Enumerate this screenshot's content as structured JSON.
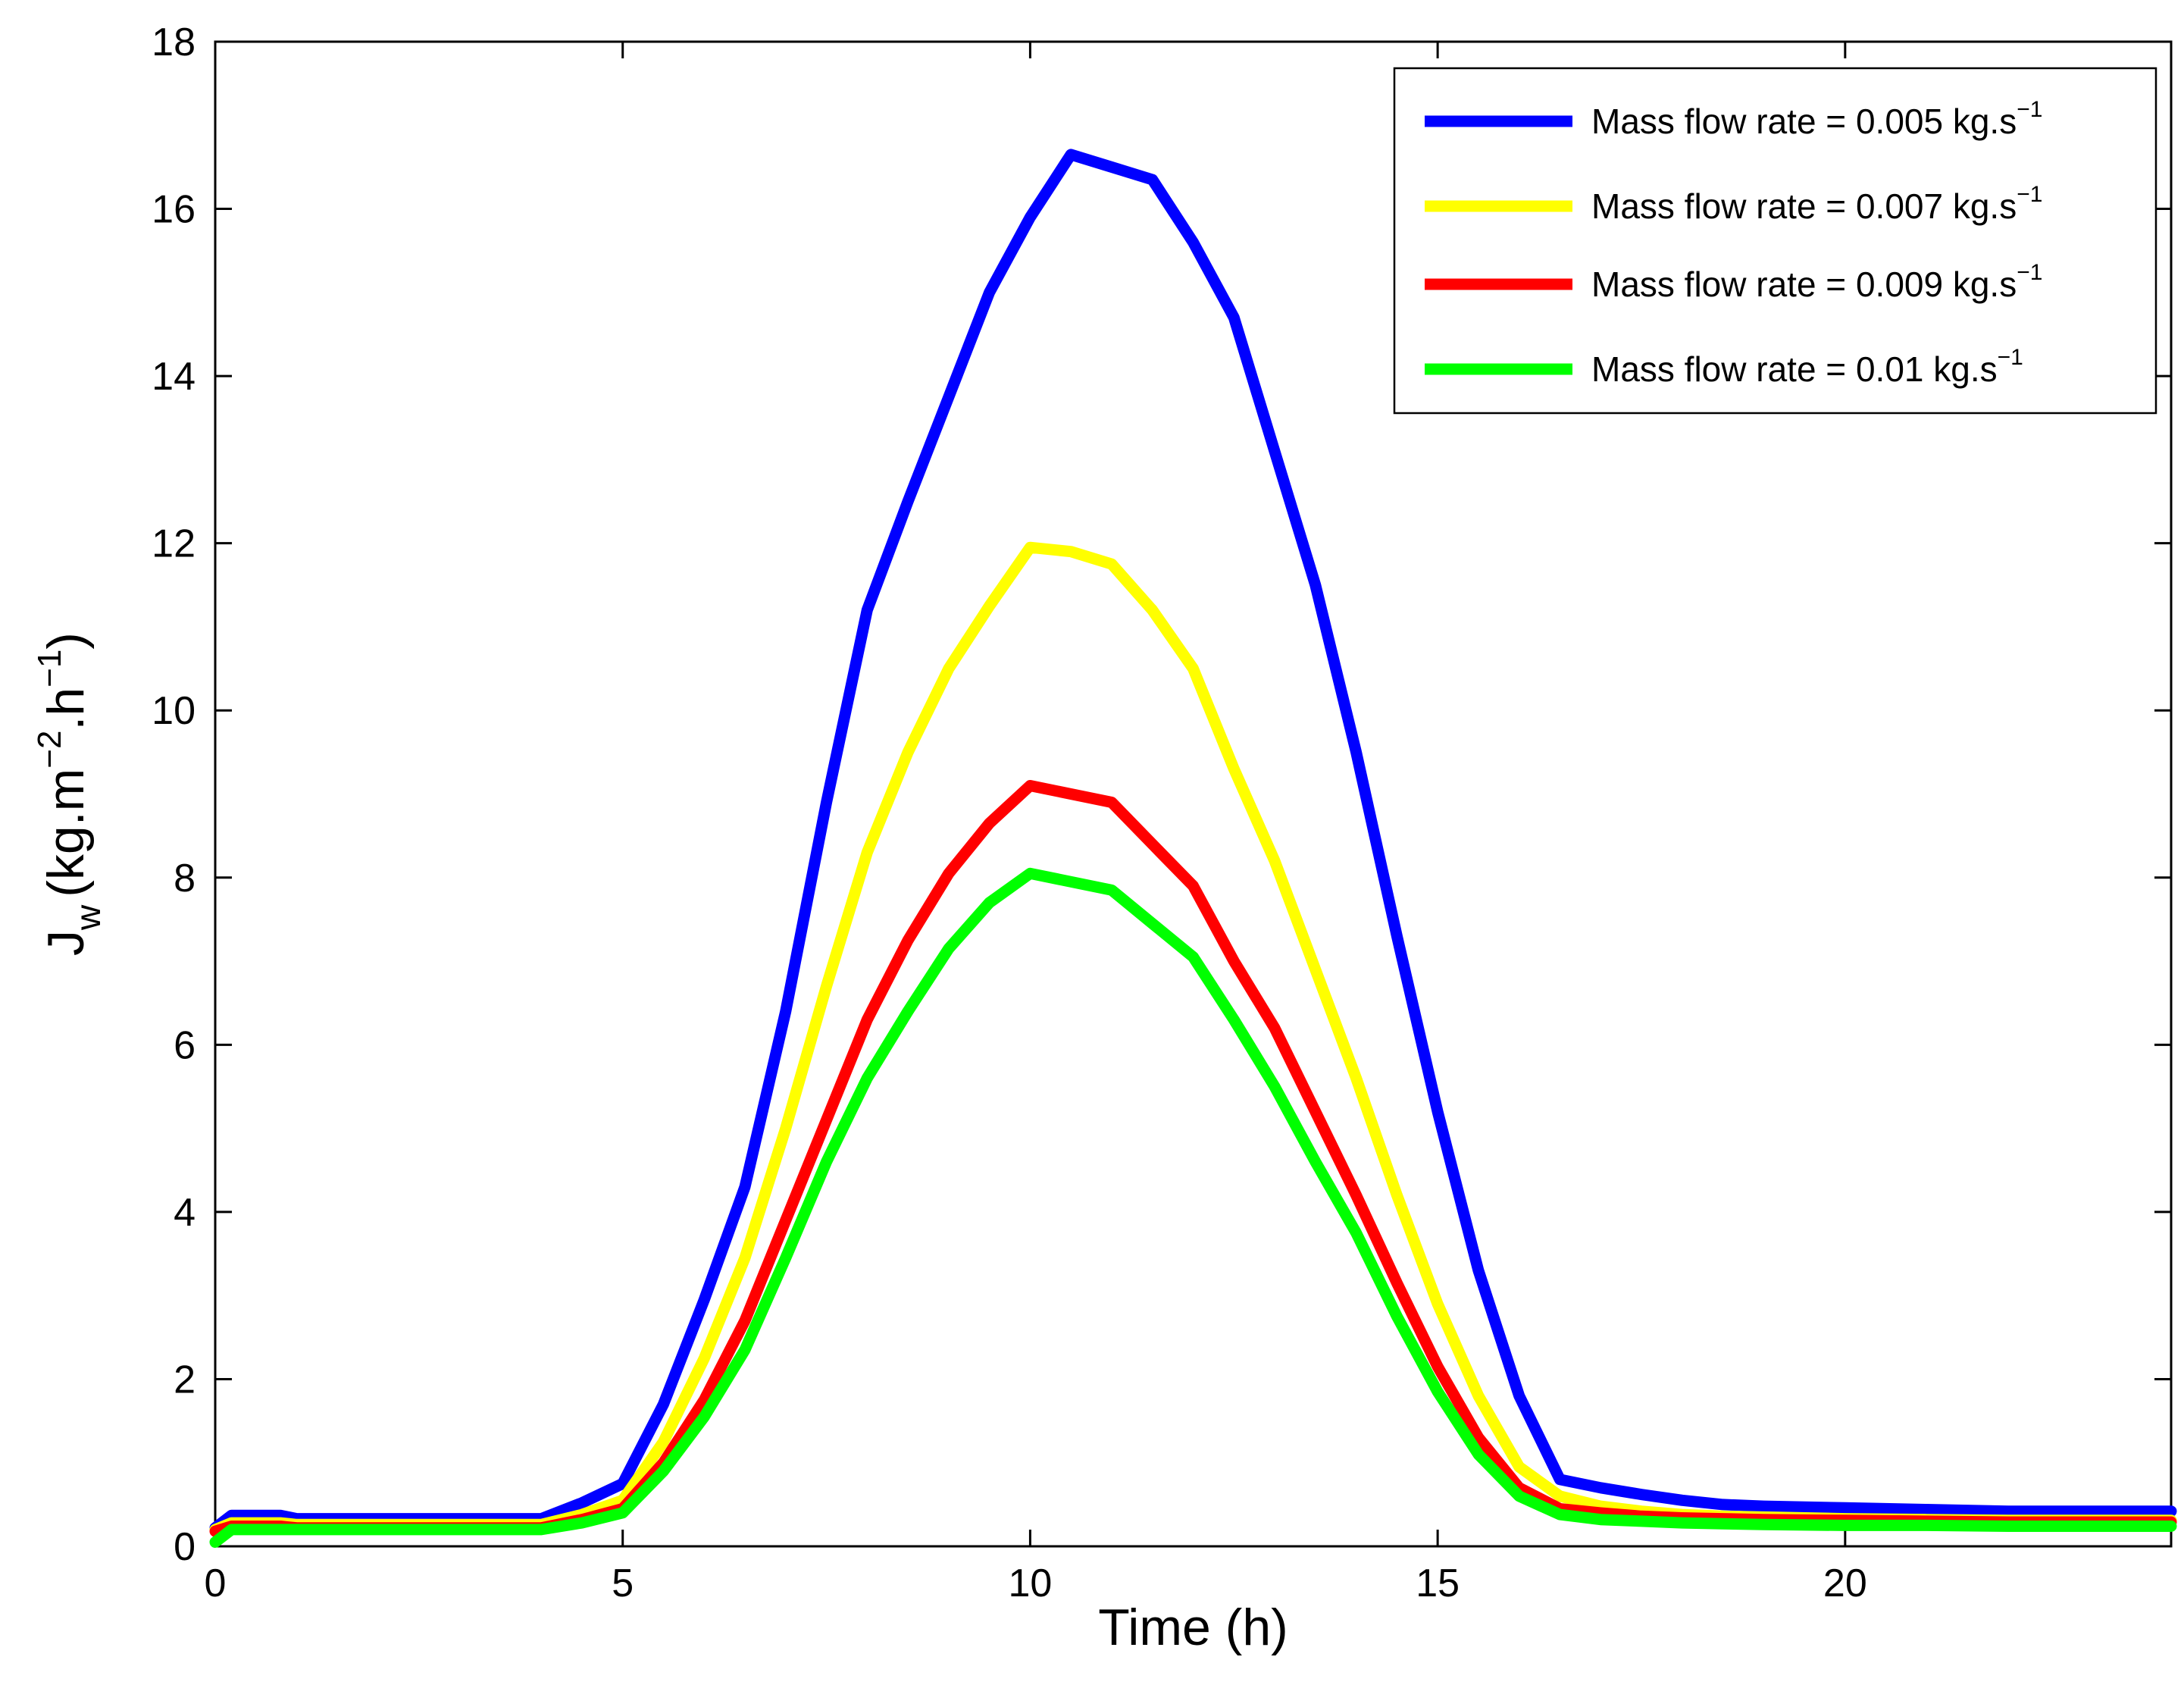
{
  "chart_data": {
    "type": "line",
    "title": "",
    "xlabel": "Time (h)",
    "ylabel": {
      "base": "J",
      "sub": "w",
      "unit_a": "(kg.m",
      "sup_a": "−2",
      "unit_b": ".h",
      "sup_b": "−1",
      "unit_close": ")"
    },
    "xlim": [
      0,
      24
    ],
    "ylim": [
      0,
      18
    ],
    "xticks": [
      0,
      5,
      10,
      15,
      20
    ],
    "yticks": [
      0,
      2,
      4,
      6,
      8,
      10,
      12,
      14,
      16,
      18
    ],
    "grid": false,
    "legend_position": "top-right",
    "x": [
      0,
      0.2,
      0.8,
      1,
      2,
      3,
      4,
      4.5,
      5,
      5.5,
      6,
      6.5,
      7,
      7.5,
      8,
      8.5,
      9,
      9.5,
      10,
      10.5,
      11,
      11.5,
      12,
      12.5,
      13,
      13.5,
      14,
      14.5,
      15,
      15.5,
      16,
      16.5,
      17,
      17.5,
      18,
      18.5,
      19,
      20,
      21,
      22,
      23,
      24
    ],
    "series": [
      {
        "name": "Mass flow rate = 0.005 kg.s",
        "legend_sup": "−1",
        "color": "#0000ff",
        "values": [
          0.22,
          0.37,
          0.37,
          0.33,
          0.33,
          0.33,
          0.33,
          0.52,
          0.75,
          1.7,
          2.95,
          4.3,
          6.4,
          8.9,
          11.2,
          12.5,
          13.75,
          15.0,
          15.9,
          16.65,
          16.5,
          16.35,
          15.6,
          14.7,
          13.1,
          11.5,
          9.5,
          7.3,
          5.2,
          3.3,
          1.8,
          0.8,
          0.7,
          0.62,
          0.55,
          0.5,
          0.48,
          0.46,
          0.44,
          0.42,
          0.42,
          0.42
        ]
      },
      {
        "name": "Mass flow rate = 0.007 kg.s",
        "legend_sup": "−1",
        "color": "#ffff00",
        "values": [
          0.2,
          0.28,
          0.28,
          0.26,
          0.26,
          0.26,
          0.26,
          0.38,
          0.55,
          1.25,
          2.25,
          3.45,
          5.0,
          6.7,
          8.3,
          9.5,
          10.5,
          11.25,
          11.95,
          11.9,
          11.75,
          11.2,
          10.5,
          9.3,
          8.2,
          6.9,
          5.6,
          4.2,
          2.9,
          1.8,
          0.95,
          0.6,
          0.48,
          0.42,
          0.38,
          0.36,
          0.35,
          0.33,
          0.32,
          0.31,
          0.31,
          0.31
        ]
      },
      {
        "name": "Mass flow rate = 0.009 kg.s",
        "legend_sup": "−1",
        "color": "#ff0000",
        "values": [
          0.18,
          0.24,
          0.24,
          0.22,
          0.22,
          0.22,
          0.22,
          0.32,
          0.45,
          1.0,
          1.75,
          2.7,
          3.9,
          5.1,
          6.3,
          7.25,
          8.05,
          8.65,
          9.1,
          9.0,
          8.9,
          8.4,
          7.9,
          7.0,
          6.2,
          5.2,
          4.2,
          3.15,
          2.15,
          1.3,
          0.7,
          0.45,
          0.4,
          0.36,
          0.34,
          0.33,
          0.32,
          0.31,
          0.3,
          0.29,
          0.29,
          0.29
        ]
      },
      {
        "name": "Mass flow rate = 0.01 kg.s",
        "legend_sup": "−1",
        "color": "#00ff00",
        "values": [
          0.05,
          0.2,
          0.2,
          0.2,
          0.2,
          0.2,
          0.2,
          0.28,
          0.4,
          0.9,
          1.55,
          2.35,
          3.45,
          4.6,
          5.6,
          6.4,
          7.15,
          7.7,
          8.05,
          7.95,
          7.85,
          7.45,
          7.05,
          6.3,
          5.5,
          4.6,
          3.75,
          2.75,
          1.85,
          1.1,
          0.6,
          0.38,
          0.32,
          0.3,
          0.28,
          0.27,
          0.26,
          0.25,
          0.25,
          0.24,
          0.24,
          0.24
        ]
      }
    ]
  }
}
